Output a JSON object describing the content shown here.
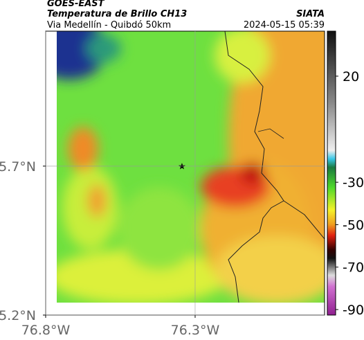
{
  "header": {
    "title": "GOES-EAST",
    "subtitle": "Temperatura de Brillo CH13",
    "region": "Via Medellín - Quibdó 50km",
    "source": "SIATA",
    "timestamp": "2024-05-15 05:39"
  },
  "map": {
    "lon_range": [
      -76.8,
      -75.867
    ],
    "lat_range": [
      5.2,
      6.153
    ],
    "lon_ticks": [
      {
        "value": -76.8,
        "label": "76.8°W"
      },
      {
        "value": -76.3,
        "label": "76.3°W"
      }
    ],
    "lat_ticks": [
      {
        "value": 5.7,
        "label": "5.7°N"
      },
      {
        "value": 5.2,
        "label": "5.2°N"
      }
    ]
  },
  "colorbar": {
    "range": [
      -92.6,
      41.2
    ],
    "ticks": [
      20,
      -30,
      -50,
      -70,
      -90
    ]
  }
}
